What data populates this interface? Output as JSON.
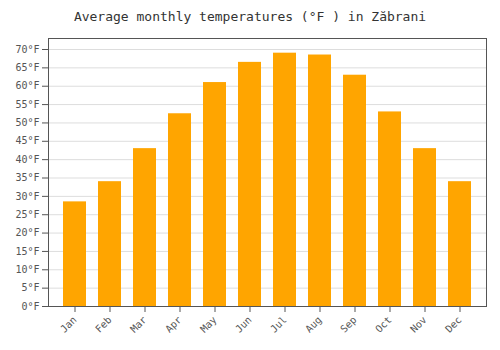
{
  "chart_data": {
    "type": "bar",
    "title": "Average monthly temperatures (°F ) in Zăbrani",
    "categories": [
      "Jan",
      "Feb",
      "Mar",
      "Apr",
      "May",
      "Jun",
      "Jul",
      "Aug",
      "Sep",
      "Oct",
      "Nov",
      "Dec"
    ],
    "values": [
      28.5,
      34.0,
      43.0,
      52.5,
      61.0,
      66.5,
      69.0,
      68.5,
      63.0,
      53.0,
      43.0,
      34.0
    ],
    "color": "#FFA500",
    "ylim": [
      0,
      73
    ],
    "yticks": [
      {
        "value": 0,
        "label": "0°F"
      },
      {
        "value": 5,
        "label": "5°F"
      },
      {
        "value": 10,
        "label": "10°F"
      },
      {
        "value": 15,
        "label": "15°F"
      },
      {
        "value": 20,
        "label": "20°F"
      },
      {
        "value": 25,
        "label": "25°F"
      },
      {
        "value": 30,
        "label": "30°F"
      },
      {
        "value": 35,
        "label": "35°F"
      },
      {
        "value": 40,
        "label": "40°F"
      },
      {
        "value": 45,
        "label": "45°F"
      },
      {
        "value": 50,
        "label": "50°F"
      },
      {
        "value": 55,
        "label": "55°F"
      },
      {
        "value": 60,
        "label": "60°F"
      },
      {
        "value": 65,
        "label": "65°F"
      },
      {
        "value": 70,
        "label": "70°F"
      }
    ],
    "grid": true
  }
}
